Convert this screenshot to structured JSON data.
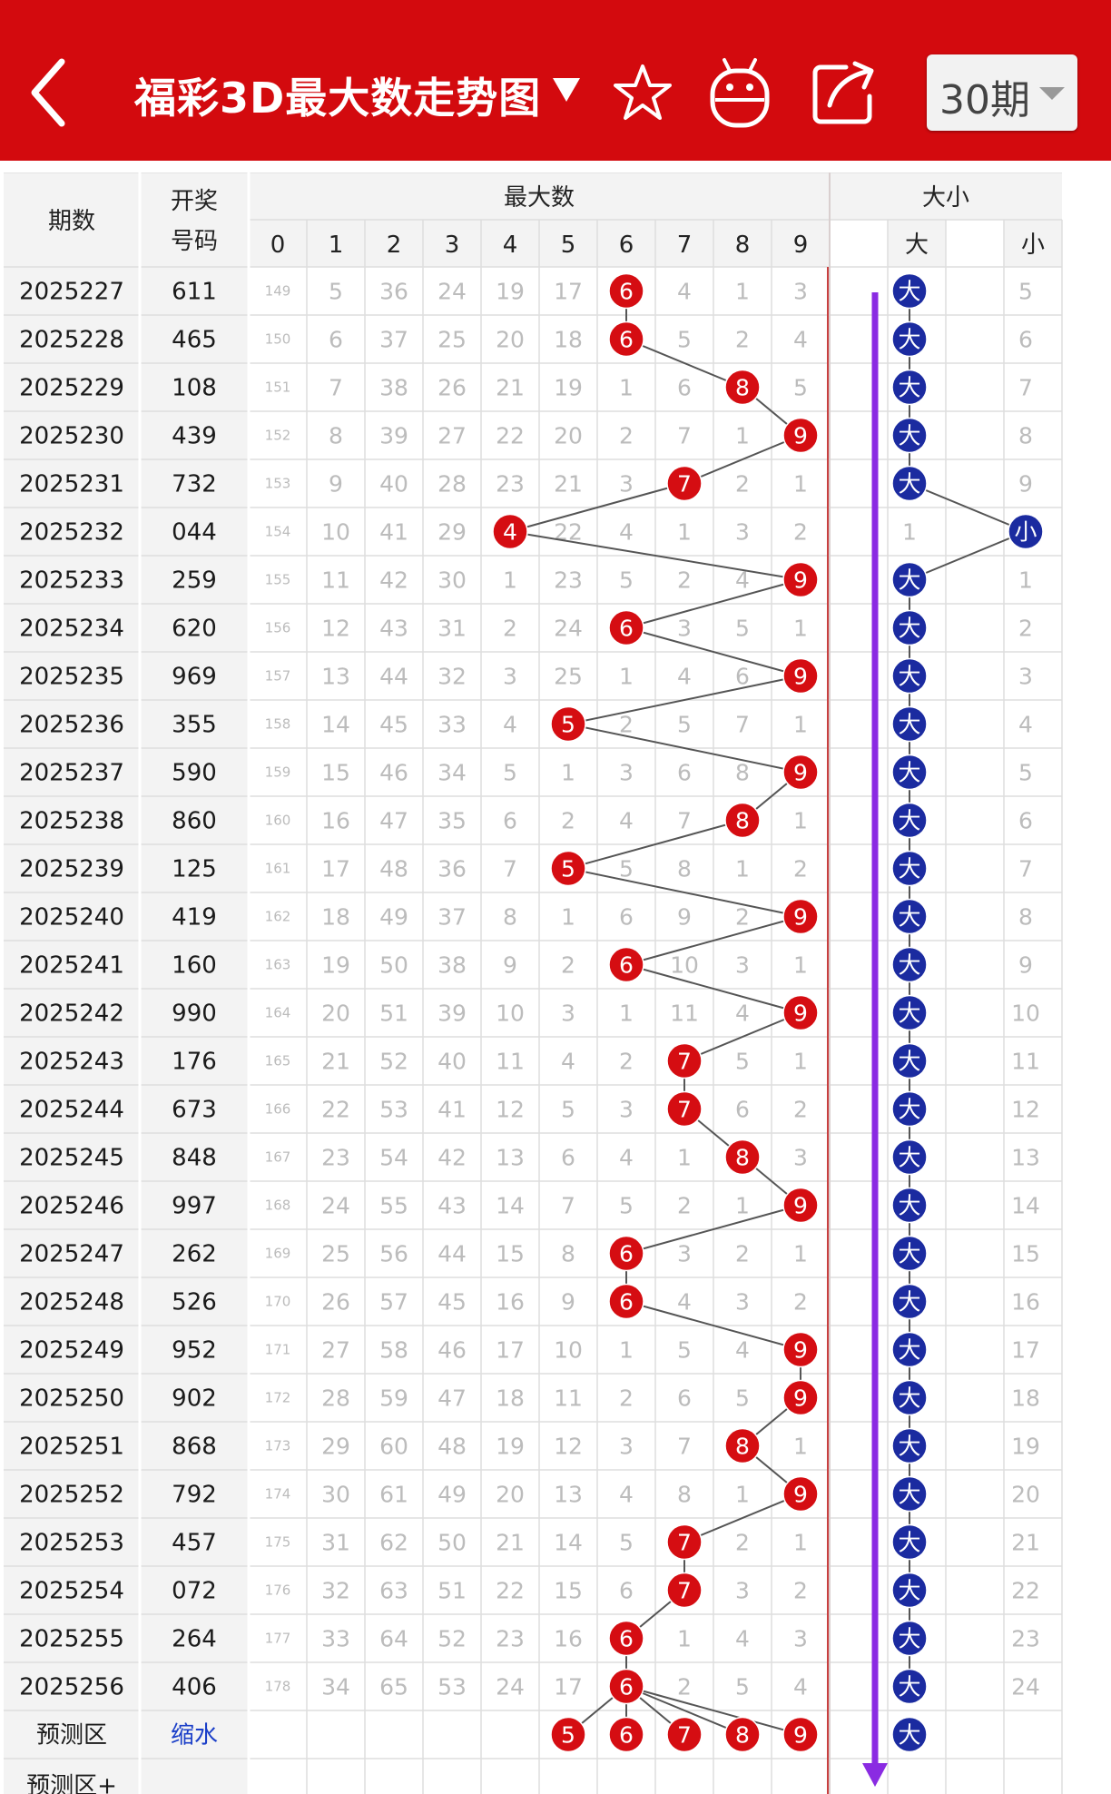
{
  "header": {
    "title": "福彩3D最大数走势图",
    "period": "30期",
    "colors": {
      "bar": "#d30a0e"
    },
    "icons": [
      "back-icon",
      "dropdown-icon",
      "star-icon",
      "robot-icon",
      "share-icon"
    ]
  },
  "table": {
    "col_issue": "期数",
    "col_draw_line1": "开奖",
    "col_draw_line2": "号码",
    "group_max": "最大数",
    "group_size": "大小",
    "digits": [
      "0",
      "1",
      "2",
      "3",
      "4",
      "5",
      "6",
      "7",
      "8",
      "9"
    ],
    "size_cols": [
      "大",
      "",
      "小"
    ],
    "rows": [
      {
        "issue": "2025227",
        "draw": "611",
        "cells": [
          149,
          5,
          36,
          24,
          19,
          17,
          6,
          4,
          1,
          3
        ],
        "max": 6,
        "big": "大",
        "small": 5
      },
      {
        "issue": "2025228",
        "draw": "465",
        "cells": [
          150,
          6,
          37,
          25,
          20,
          18,
          6,
          5,
          2,
          4
        ],
        "max": 6,
        "big": "大",
        "small": 6
      },
      {
        "issue": "2025229",
        "draw": "108",
        "cells": [
          151,
          7,
          38,
          26,
          21,
          19,
          1,
          6,
          8,
          5
        ],
        "max": 8,
        "big": "大",
        "small": 7
      },
      {
        "issue": "2025230",
        "draw": "439",
        "cells": [
          152,
          8,
          39,
          27,
          22,
          20,
          2,
          7,
          1,
          9
        ],
        "max": 9,
        "big": "大",
        "small": 8
      },
      {
        "issue": "2025231",
        "draw": "732",
        "cells": [
          153,
          9,
          40,
          28,
          23,
          21,
          3,
          7,
          2,
          1
        ],
        "max": 7,
        "big": "大",
        "small": 9
      },
      {
        "issue": "2025232",
        "draw": "044",
        "cells": [
          154,
          10,
          41,
          29,
          4,
          22,
          4,
          1,
          3,
          2
        ],
        "max": 4,
        "big": 1,
        "small": "小"
      },
      {
        "issue": "2025233",
        "draw": "259",
        "cells": [
          155,
          11,
          42,
          30,
          1,
          23,
          5,
          2,
          4,
          9
        ],
        "max": 9,
        "big": "大",
        "small": 1
      },
      {
        "issue": "2025234",
        "draw": "620",
        "cells": [
          156,
          12,
          43,
          31,
          2,
          24,
          6,
          3,
          5,
          1
        ],
        "max": 6,
        "big": "大",
        "small": 2
      },
      {
        "issue": "2025235",
        "draw": "969",
        "cells": [
          157,
          13,
          44,
          32,
          3,
          25,
          1,
          4,
          6,
          9
        ],
        "max": 9,
        "big": "大",
        "small": 3
      },
      {
        "issue": "2025236",
        "draw": "355",
        "cells": [
          158,
          14,
          45,
          33,
          4,
          5,
          2,
          5,
          7,
          1
        ],
        "max": 5,
        "big": "大",
        "small": 4
      },
      {
        "issue": "2025237",
        "draw": "590",
        "cells": [
          159,
          15,
          46,
          34,
          5,
          1,
          3,
          6,
          8,
          9
        ],
        "max": 9,
        "big": "大",
        "small": 5
      },
      {
        "issue": "2025238",
        "draw": "860",
        "cells": [
          160,
          16,
          47,
          35,
          6,
          2,
          4,
          7,
          8,
          1
        ],
        "max": 8,
        "big": "大",
        "small": 6
      },
      {
        "issue": "2025239",
        "draw": "125",
        "cells": [
          161,
          17,
          48,
          36,
          7,
          5,
          5,
          8,
          1,
          2
        ],
        "max": 5,
        "big": "大",
        "small": 7
      },
      {
        "issue": "2025240",
        "draw": "419",
        "cells": [
          162,
          18,
          49,
          37,
          8,
          1,
          6,
          9,
          2,
          9
        ],
        "max": 9,
        "big": "大",
        "small": 8
      },
      {
        "issue": "2025241",
        "draw": "160",
        "cells": [
          163,
          19,
          50,
          38,
          9,
          2,
          6,
          10,
          3,
          1
        ],
        "max": 6,
        "big": "大",
        "small": 9
      },
      {
        "issue": "2025242",
        "draw": "990",
        "cells": [
          164,
          20,
          51,
          39,
          10,
          3,
          1,
          11,
          4,
          9
        ],
        "max": 9,
        "big": "大",
        "small": 10
      },
      {
        "issue": "2025243",
        "draw": "176",
        "cells": [
          165,
          21,
          52,
          40,
          11,
          4,
          2,
          7,
          5,
          1
        ],
        "max": 7,
        "big": "大",
        "small": 11
      },
      {
        "issue": "2025244",
        "draw": "673",
        "cells": [
          166,
          22,
          53,
          41,
          12,
          5,
          3,
          7,
          6,
          2
        ],
        "max": 7,
        "big": "大",
        "small": 12
      },
      {
        "issue": "2025245",
        "draw": "848",
        "cells": [
          167,
          23,
          54,
          42,
          13,
          6,
          4,
          1,
          8,
          3
        ],
        "max": 8,
        "big": "大",
        "small": 13
      },
      {
        "issue": "2025246",
        "draw": "997",
        "cells": [
          168,
          24,
          55,
          43,
          14,
          7,
          5,
          2,
          1,
          9
        ],
        "max": 9,
        "big": "大",
        "small": 14
      },
      {
        "issue": "2025247",
        "draw": "262",
        "cells": [
          169,
          25,
          56,
          44,
          15,
          8,
          6,
          3,
          2,
          1
        ],
        "max": 6,
        "big": "大",
        "small": 15
      },
      {
        "issue": "2025248",
        "draw": "526",
        "cells": [
          170,
          26,
          57,
          45,
          16,
          9,
          6,
          4,
          3,
          2
        ],
        "max": 6,
        "big": "大",
        "small": 16
      },
      {
        "issue": "2025249",
        "draw": "952",
        "cells": [
          171,
          27,
          58,
          46,
          17,
          10,
          1,
          5,
          4,
          9
        ],
        "max": 9,
        "big": "大",
        "small": 17
      },
      {
        "issue": "2025250",
        "draw": "902",
        "cells": [
          172,
          28,
          59,
          47,
          18,
          11,
          2,
          6,
          5,
          9
        ],
        "max": 9,
        "big": "大",
        "small": 18
      },
      {
        "issue": "2025251",
        "draw": "868",
        "cells": [
          173,
          29,
          60,
          48,
          19,
          12,
          3,
          7,
          8,
          1
        ],
        "max": 8,
        "big": "大",
        "small": 19
      },
      {
        "issue": "2025252",
        "draw": "792",
        "cells": [
          174,
          30,
          61,
          49,
          20,
          13,
          4,
          8,
          1,
          9
        ],
        "max": 9,
        "big": "大",
        "small": 20
      },
      {
        "issue": "2025253",
        "draw": "457",
        "cells": [
          175,
          31,
          62,
          50,
          21,
          14,
          5,
          7,
          2,
          1
        ],
        "max": 7,
        "big": "大",
        "small": 21
      },
      {
        "issue": "2025254",
        "draw": "072",
        "cells": [
          176,
          32,
          63,
          51,
          22,
          15,
          6,
          7,
          3,
          2
        ],
        "max": 7,
        "big": "大",
        "small": 22
      },
      {
        "issue": "2025255",
        "draw": "264",
        "cells": [
          177,
          33,
          64,
          52,
          23,
          16,
          6,
          1,
          4,
          3
        ],
        "max": 6,
        "big": "大",
        "small": 23
      },
      {
        "issue": "2025256",
        "draw": "406",
        "cells": [
          178,
          34,
          65,
          53,
          24,
          17,
          6,
          2,
          5,
          4
        ],
        "max": 6,
        "big": "大",
        "small": 24
      }
    ],
    "predict": {
      "label": "预测区",
      "link": "缩水",
      "balls": [
        5,
        6,
        7,
        8,
        9
      ],
      "size": "大"
    },
    "predict_plus": {
      "label": "预测区+"
    }
  }
}
